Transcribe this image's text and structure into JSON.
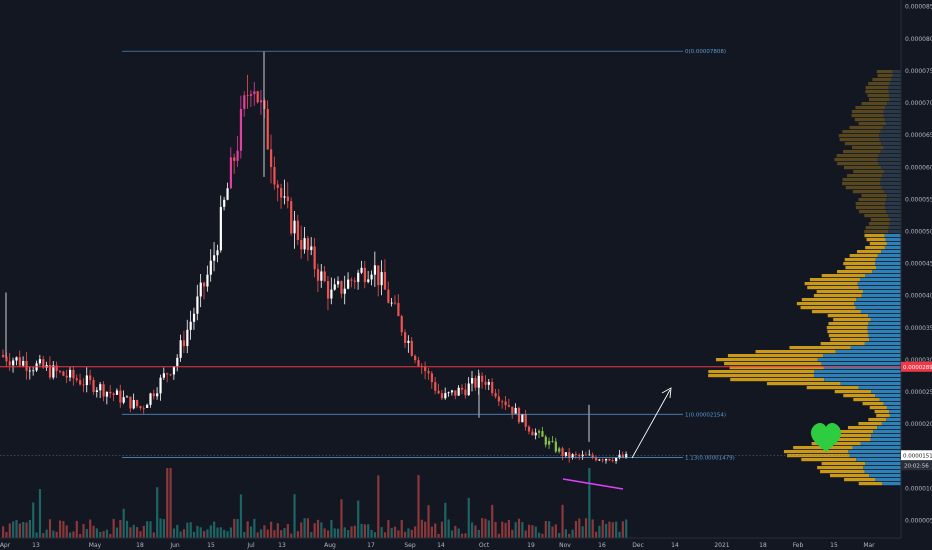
{
  "chart_data": {
    "type": "candlestick",
    "y_scale": "linear",
    "ylim": [
      2.5e-06,
      9e-06
    ],
    "y_ticks": [
      "0.00000500",
      "0.00001000",
      "0.00001500",
      "0.00002000",
      "0.00002500",
      "0.00003000",
      "0.00003500",
      "0.00004000",
      "0.00004500",
      "0.00005000",
      "0.00005500",
      "0.00006000",
      "0.00006500",
      "0.00007000",
      "0.00007500",
      "0.00008000",
      "0.00008500"
    ],
    "x_ticks": [
      "Apr",
      "13",
      "May",
      "18",
      "Jun",
      "15",
      "Jul",
      "13",
      "Aug",
      "17",
      "Sep",
      "14",
      "Oct",
      "19",
      "Nov",
      "16",
      "Dec",
      "14",
      "2021",
      "18",
      "Feb",
      "15",
      "Mar"
    ],
    "price_path": [
      [
        "Apr",
        3.05e-05
      ],
      [
        "13",
        2.9e-05
      ],
      [
        "May",
        2.6e-05
      ],
      [
        "18",
        2.25e-05
      ],
      [
        "Jun",
        3e-05
      ],
      [
        "15",
        4.5e-05
      ],
      [
        "Jul",
        7.5e-05
      ],
      [
        "13",
        5.4e-05
      ],
      [
        "Aug",
        4e-05
      ],
      [
        "17",
        4.5e-05
      ],
      [
        "Sep",
        3.2e-05
      ],
      [
        "14",
        2.4e-05
      ],
      [
        "Oct",
        2.7e-05
      ],
      [
        "19",
        1.9e-05
      ],
      [
        "Nov",
        1.5e-05
      ],
      [
        "16",
        1.48e-05
      ]
    ],
    "fib_levels": [
      {
        "label": "0(0.00007808)",
        "value": 7.808e-05
      },
      {
        "label": "1(0.00002154)",
        "value": 2.154e-05
      },
      {
        "label": "1.13(0.00001479)",
        "value": 1.479e-05
      }
    ],
    "horizontal_line": {
      "value": 2.894e-05,
      "label": "0.00002894",
      "color": "#f23645"
    },
    "last_price": {
      "value": 1.516e-05,
      "label": "0.00001516",
      "countdown": "20:02:56"
    },
    "annotations": [
      "heart",
      "projection-arrow",
      "divergence-line"
    ],
    "grid": false,
    "colors": {
      "background": "#131722",
      "up": "#ffffff",
      "down": "#ef5350",
      "pink_candles": "#e040a0",
      "green_candles": "#8bc34a",
      "volume_up": "#26a69a",
      "volume_down": "#ef5350",
      "volume_profile_up": "#d4a017",
      "volume_profile_down": "#2e86c1",
      "fib": "#5b9bd5",
      "heart": "#2ecc40",
      "divergence": "#e040fb"
    }
  }
}
